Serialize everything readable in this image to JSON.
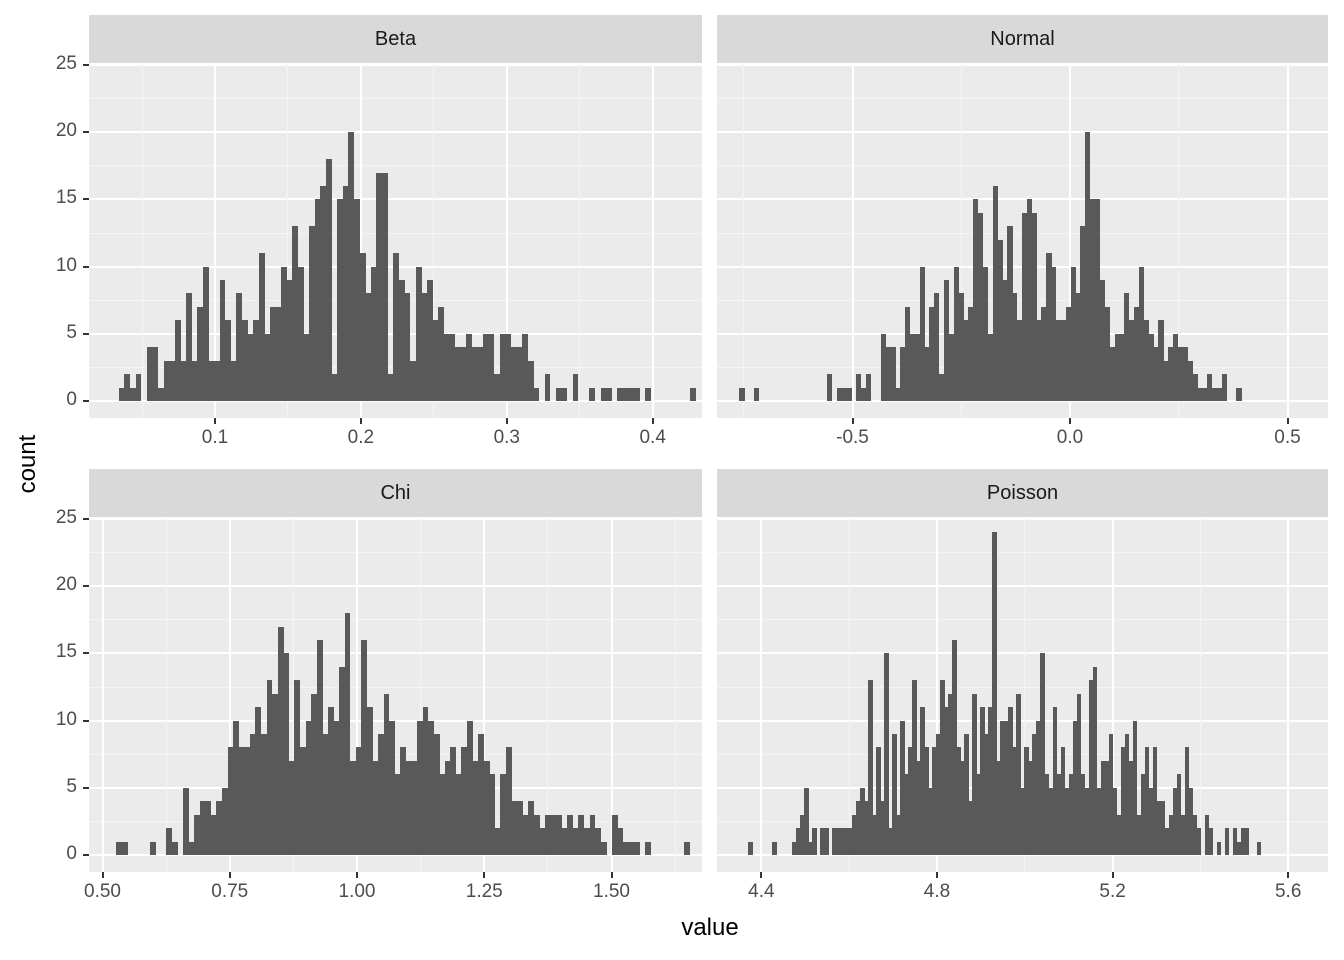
{
  "chart_data": {
    "type": "bar",
    "subtype": "faceted-histogram",
    "xlabel": "value",
    "ylabel": "count",
    "ylim": [
      0,
      25
    ],
    "yticks": [
      0,
      5,
      10,
      15,
      20,
      25
    ],
    "grid": true,
    "facets": [
      {
        "title": "Beta",
        "xticks": [
          0.1,
          0.2,
          0.3,
          0.4
        ],
        "xtick_labels": [
          "0.1",
          "0.2",
          "0.3",
          "0.4"
        ],
        "bin_start": 0.034,
        "bin_width": 0.00384,
        "counts": [
          1,
          2,
          1,
          2,
          0,
          4,
          4,
          1,
          3,
          3,
          6,
          3,
          8,
          3,
          7,
          10,
          3,
          3,
          9,
          6,
          3,
          8,
          6,
          5,
          6,
          11,
          5,
          7,
          7,
          10,
          9,
          13,
          10,
          5,
          13,
          15,
          16,
          18,
          2,
          15,
          16,
          20,
          15,
          11,
          8,
          10,
          17,
          17,
          2,
          11,
          9,
          8,
          3,
          10,
          8,
          9,
          6,
          7,
          5,
          5,
          4,
          4,
          5,
          4,
          4,
          5,
          5,
          2,
          5,
          5,
          4,
          4,
          5,
          3,
          1,
          0,
          2,
          0,
          1,
          1,
          0,
          2,
          0,
          0,
          1,
          0,
          1,
          1,
          0,
          1,
          1,
          1,
          1,
          0,
          1,
          0,
          0,
          0,
          0,
          0,
          0,
          0,
          1,
          0,
          0,
          0,
          0,
          0,
          0,
          0,
          1
        ]
      },
      {
        "title": "Normal",
        "xticks": [
          -0.5,
          0.0,
          0.5
        ],
        "xtick_labels": [
          "-0.5",
          "0.0",
          "0.5"
        ],
        "bin_start": -0.76,
        "bin_width": 0.0112,
        "counts": [
          1,
          0,
          0,
          1,
          0,
          0,
          0,
          0,
          0,
          0,
          0,
          0,
          0,
          0,
          0,
          0,
          0,
          0,
          2,
          0,
          1,
          1,
          1,
          0,
          2,
          1,
          2,
          0,
          0,
          5,
          4,
          4,
          1,
          4,
          7,
          5,
          5,
          10,
          4,
          7,
          8,
          2,
          9,
          5,
          10,
          8,
          6,
          7,
          15,
          14,
          10,
          5,
          16,
          12,
          9,
          13,
          8,
          6,
          14,
          15,
          14,
          6,
          7,
          11,
          10,
          6,
          6,
          7,
          10,
          8,
          13,
          20,
          15,
          15,
          9,
          7,
          4,
          5,
          5,
          8,
          6,
          7,
          10,
          6,
          5,
          4,
          6,
          3,
          4,
          5,
          4,
          4,
          3,
          2,
          1,
          1,
          2,
          1,
          1,
          2,
          0,
          0,
          1
        ]
      },
      {
        "title": "Chi",
        "xticks": [
          0.5,
          0.75,
          1.0,
          1.25,
          1.5
        ],
        "xtick_labels": [
          "0.50",
          "0.75",
          "1.00",
          "1.25",
          "1.50"
        ],
        "bin_start": 0.527,
        "bin_width": 0.01094,
        "counts": [
          1,
          1,
          0,
          0,
          0,
          0,
          1,
          0,
          0,
          2,
          1,
          0,
          5,
          1,
          3,
          4,
          4,
          3,
          4,
          5,
          8,
          10,
          8,
          8,
          9,
          11,
          9,
          13,
          12,
          17,
          15,
          7,
          13,
          8,
          10,
          12,
          16,
          9,
          11,
          10,
          14,
          18,
          7,
          8,
          16,
          11,
          7,
          9,
          12,
          10,
          6,
          8,
          7,
          7,
          10,
          11,
          10,
          9,
          6,
          7,
          8,
          6,
          8,
          10,
          7,
          9,
          7,
          6,
          2,
          6,
          8,
          4,
          4,
          3,
          4,
          3,
          2,
          3,
          3,
          3,
          2,
          3,
          2,
          3,
          2,
          3,
          2,
          1,
          0,
          3,
          2,
          1,
          1,
          1,
          0,
          1,
          0,
          0,
          0,
          0,
          0,
          0,
          1,
          0,
          0,
          0,
          0,
          0,
          1,
          0,
          1
        ]
      },
      {
        "title": "Poisson",
        "xticks": [
          4.4,
          4.8,
          5.2,
          5.6
        ],
        "xtick_labels": [
          "4.4",
          "4.8",
          "5.2",
          "5.6"
        ],
        "bin_start": 4.37,
        "bin_width": 0.00912,
        "counts": [
          1,
          0,
          0,
          0,
          0,
          0,
          1,
          0,
          0,
          0,
          0,
          1,
          2,
          3,
          5,
          1,
          2,
          0,
          2,
          2,
          0,
          2,
          2,
          2,
          2,
          2,
          3,
          4,
          5,
          4,
          13,
          3,
          8,
          4,
          15,
          2,
          9,
          3,
          10,
          6,
          8,
          13,
          7,
          11,
          8,
          5,
          8,
          9,
          13,
          11,
          12,
          16,
          8,
          7,
          9,
          4,
          12,
          6,
          11,
          9,
          11,
          24,
          7,
          10,
          10,
          11,
          8,
          12,
          5,
          8,
          7,
          9,
          10,
          15,
          6,
          5,
          11,
          6,
          8,
          5,
          6,
          10,
          12,
          6,
          5,
          13,
          14,
          5,
          7,
          7,
          9,
          5,
          3,
          8,
          9,
          7,
          10,
          3,
          6,
          8,
          5,
          8,
          4,
          4,
          2,
          3,
          5,
          6,
          3,
          8,
          5,
          3,
          2,
          0,
          3,
          2,
          0,
          1,
          0,
          2,
          0,
          2,
          1,
          2,
          2,
          0,
          0,
          1
        ]
      }
    ]
  },
  "axes": {
    "x_title": "value",
    "y_title": "count"
  }
}
